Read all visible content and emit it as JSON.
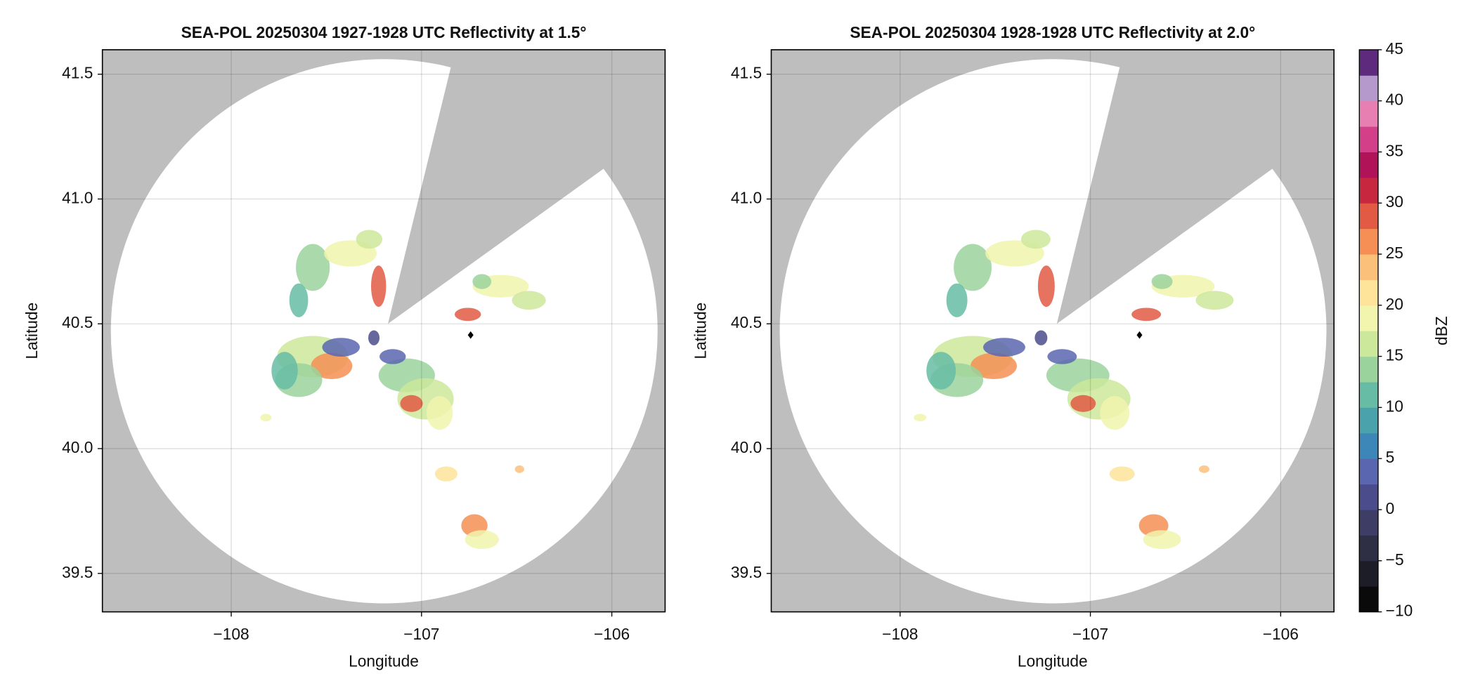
{
  "chart_data": [
    {
      "type": "radar-ppi",
      "title": "SEA-POL 20250304 1927-1928 UTC Reflectivity at 1.5°",
      "xlabel": "Longitude",
      "ylabel": "Latitude",
      "xlim": [
        -108.677,
        -105.72
      ],
      "ylim": [
        39.346,
        41.598
      ],
      "xticks": [
        {
          "value": -108,
          "label": "−108"
        },
        {
          "value": -107,
          "label": "−107"
        },
        {
          "value": -106,
          "label": "−106"
        }
      ],
      "yticks": [
        {
          "value": 39.5,
          "label": "39.5"
        },
        {
          "value": 40,
          "label": "40.0"
        },
        40.5,
        {
          "value": 41,
          "label": "41.0"
        },
        41.5
      ],
      "grid": true,
      "background_color": "#bebebe"
    },
    {
      "type": "radar-ppi",
      "title": "SEA-POL 20250304 1928-1928 UTC Reflectivity at 2.0°",
      "xlabel": "Longitude",
      "ylabel": "Latitude",
      "xlim": [
        -108.677,
        -105.72
      ],
      "ylim": [
        39.346,
        41.598
      ],
      "xticks": [
        {
          "value": -108,
          "label": "−108"
        },
        {
          "value": -107,
          "label": "−107"
        },
        {
          "value": -106,
          "label": "−106"
        }
      ],
      "yticks": [
        {
          "value": 39.5,
          "label": "39.5"
        },
        {
          "value": 40,
          "label": "40.0"
        },
        40.5,
        {
          "value": 41,
          "label": "41.0"
        },
        41.5
      ],
      "grid": true,
      "background_color": "#bebebe",
      "colorbar": {
        "label": "dBZ",
        "lim": [
          -10,
          45
        ],
        "ticks": [
          {
            "value": -10,
            "label": "−10"
          },
          {
            "value": -5,
            "label": "−5"
          },
          0,
          5,
          10,
          15,
          20,
          25,
          30,
          35,
          40,
          45
        ],
        "colors": [
          "#0a0a0a",
          "#1d1d28",
          "#2e2e44",
          "#3d3d66",
          "#4b4c8c",
          "#5a66b0",
          "#3d86b8",
          "#4aa3ac",
          "#66bca4",
          "#9bd39c",
          "#cce89a",
          "#f1f5ad",
          "#fde49a",
          "#fbc07a",
          "#f58f55",
          "#e25a44",
          "#c7283f",
          "#b01358",
          "#d43f8a",
          "#e87fb3",
          "#b599cc",
          "#5e2a7e"
        ]
      }
    }
  ]
}
